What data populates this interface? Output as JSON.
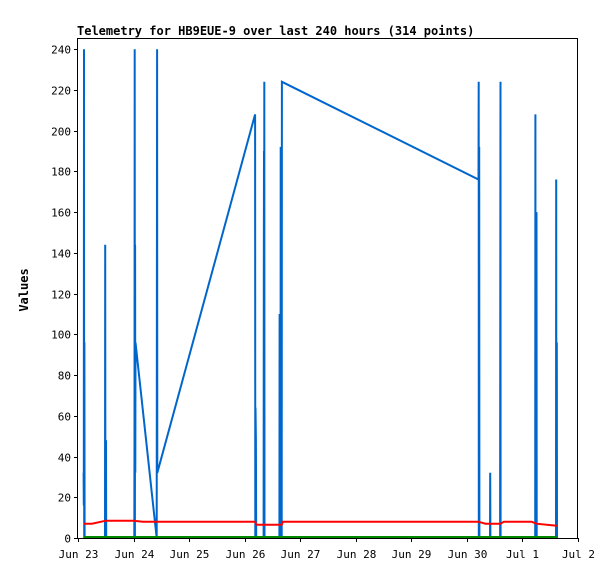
{
  "chart_data": {
    "type": "line",
    "title": "Telemetry for HB9EUE-9 over last 240 hours (314 points)",
    "xlabel": "",
    "ylabel": "Values",
    "ylim": [
      0,
      245
    ],
    "yticks": [
      0,
      20,
      40,
      60,
      80,
      100,
      120,
      140,
      160,
      180,
      200,
      220,
      240
    ],
    "xlim": [
      "2024-06-23 00:00",
      "2024-07-02 00:00"
    ],
    "xticks": [
      {
        "t": "2024-06-23 00:00",
        "label": "Jun 23"
      },
      {
        "t": "2024-06-24 00:00",
        "label": "Jun 24"
      },
      {
        "t": "2024-06-25 00:00",
        "label": "Jun 25"
      },
      {
        "t": "2024-06-26 00:00",
        "label": "Jun 26"
      },
      {
        "t": "2024-06-27 00:00",
        "label": "Jun 27"
      },
      {
        "t": "2024-06-28 00:00",
        "label": "Jun 28"
      },
      {
        "t": "2024-06-29 00:00",
        "label": "Jun 29"
      },
      {
        "t": "2024-06-30 00:00",
        "label": "Jun 30"
      },
      {
        "t": "2024-07-01 00:00",
        "label": "Jul 1"
      },
      {
        "t": "2024-07-02 00:00",
        "label": "Jul 2"
      }
    ],
    "grid": false,
    "series": [
      {
        "color": "#0066cc",
        "points": [
          [
            "2024-06-23 02:24",
            32
          ],
          [
            "2024-06-23 02:30",
            16
          ],
          [
            "2024-06-23 02:36",
            240
          ],
          [
            "2024-06-23 02:40",
            0
          ],
          [
            "2024-06-23 02:45",
            96
          ],
          [
            "2024-06-23 02:50",
            0
          ],
          [
            "2024-06-23 11:40",
            0
          ],
          [
            "2024-06-23 11:45",
            144
          ],
          [
            "2024-06-23 11:50",
            0
          ],
          [
            "2024-06-23 12:05",
            48
          ],
          [
            "2024-06-23 12:10",
            0
          ],
          [
            "2024-06-24 00:20",
            0
          ],
          [
            "2024-06-24 00:25",
            48
          ],
          [
            "2024-06-24 00:30",
            240
          ],
          [
            "2024-06-24 00:35",
            0
          ],
          [
            "2024-06-24 00:40",
            144
          ],
          [
            "2024-06-24 00:45",
            32
          ],
          [
            "2024-06-24 00:50",
            96
          ],
          [
            "2024-06-24 10:00",
            0
          ],
          [
            "2024-06-24 10:05",
            128
          ],
          [
            "2024-06-24 10:10",
            240
          ],
          [
            "2024-06-24 10:15",
            32
          ],
          [
            "2024-06-26 04:30",
            208
          ],
          [
            "2024-06-26 04:35",
            0
          ],
          [
            "2024-06-26 04:40",
            64
          ],
          [
            "2024-06-26 04:50",
            48
          ],
          [
            "2024-06-26 05:00",
            0
          ],
          [
            "2024-06-26 08:10",
            0
          ],
          [
            "2024-06-26 08:15",
            128
          ],
          [
            "2024-06-26 08:20",
            190
          ],
          [
            "2024-06-26 08:25",
            0
          ],
          [
            "2024-06-26 08:30",
            224
          ],
          [
            "2024-06-26 08:35",
            0
          ],
          [
            "2024-06-26 15:00",
            0
          ],
          [
            "2024-06-26 15:05",
            110
          ],
          [
            "2024-06-26 15:10",
            0
          ],
          [
            "2024-06-26 15:30",
            0
          ],
          [
            "2024-06-26 15:35",
            192
          ],
          [
            "2024-06-26 15:40",
            0
          ],
          [
            "2024-06-26 16:00",
            0
          ],
          [
            "2024-06-26 16:05",
            224
          ],
          [
            "2024-06-30 05:00",
            176
          ],
          [
            "2024-06-30 05:05",
            224
          ],
          [
            "2024-06-30 05:10",
            0
          ],
          [
            "2024-06-30 05:20",
            192
          ],
          [
            "2024-06-30 05:25",
            0
          ],
          [
            "2024-06-30 10:00",
            0
          ],
          [
            "2024-06-30 10:05",
            32
          ],
          [
            "2024-06-30 10:10",
            0
          ],
          [
            "2024-06-30 14:20",
            0
          ],
          [
            "2024-06-30 14:25",
            128
          ],
          [
            "2024-06-30 14:30",
            224
          ],
          [
            "2024-06-30 14:35",
            0
          ],
          [
            "2024-07-01 05:30",
            0
          ],
          [
            "2024-07-01 05:35",
            208
          ],
          [
            "2024-07-01 05:40",
            0
          ],
          [
            "2024-07-01 06:00",
            0
          ],
          [
            "2024-07-01 06:05",
            160
          ],
          [
            "2024-07-01 06:10",
            0
          ],
          [
            "2024-07-01 14:30",
            0
          ],
          [
            "2024-07-01 14:35",
            176
          ],
          [
            "2024-07-01 14:40",
            0
          ],
          [
            "2024-07-01 14:50",
            96
          ],
          [
            "2024-07-01 14:55",
            0
          ]
        ]
      },
      {
        "color": "#ff0000",
        "points": [
          [
            "2024-06-23 02:30",
            7
          ],
          [
            "2024-06-23 06:00",
            7
          ],
          [
            "2024-06-23 12:00",
            8.5
          ],
          [
            "2024-06-24 00:00",
            8.5
          ],
          [
            "2024-06-24 04:00",
            8
          ],
          [
            "2024-06-24 12:00",
            8
          ],
          [
            "2024-06-26 04:30",
            8
          ],
          [
            "2024-06-26 05:00",
            6.5
          ],
          [
            "2024-06-26 16:00",
            6.5
          ],
          [
            "2024-06-26 16:30",
            8
          ],
          [
            "2024-06-30 00:00",
            8
          ],
          [
            "2024-06-30 05:00",
            8
          ],
          [
            "2024-06-30 08:00",
            7
          ],
          [
            "2024-06-30 14:30",
            7
          ],
          [
            "2024-06-30 16:00",
            8
          ],
          [
            "2024-07-01 04:00",
            8
          ],
          [
            "2024-07-01 06:00",
            7
          ],
          [
            "2024-07-01 14:50",
            6
          ]
        ]
      },
      {
        "color": "#008800",
        "points": [
          [
            "2024-06-23 02:30",
            0.5
          ],
          [
            "2024-07-01 14:50",
            0.5
          ]
        ]
      }
    ]
  }
}
